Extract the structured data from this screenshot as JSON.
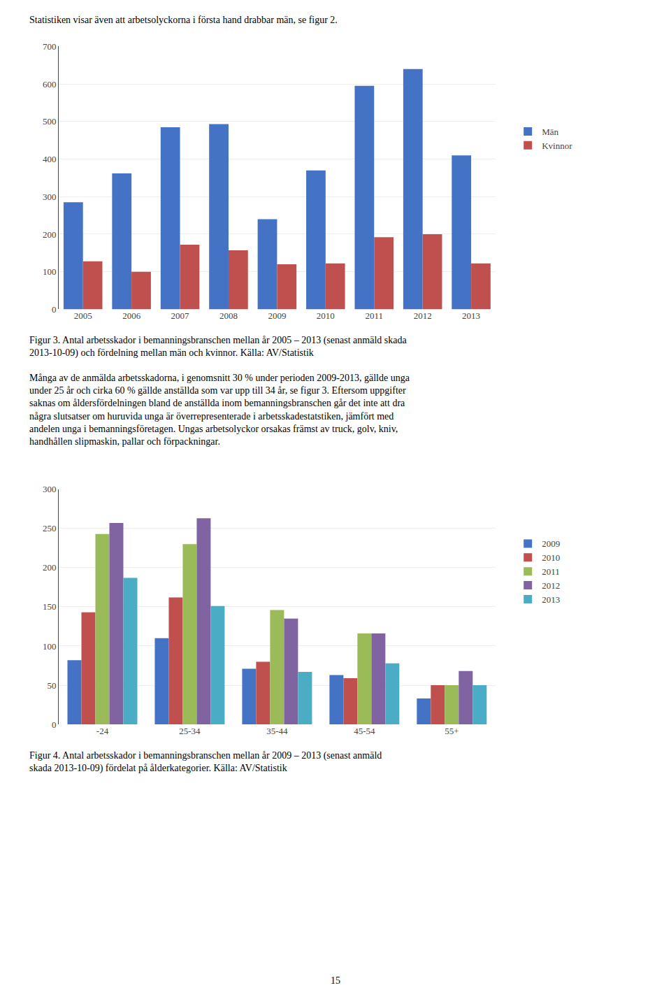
{
  "chart_data": [
    {
      "type": "bar",
      "categories": [
        "2005",
        "2006",
        "2007",
        "2008",
        "2009",
        "2010",
        "2011",
        "2012",
        "2013"
      ],
      "series": [
        {
          "name": "Män",
          "color": "#4472C4",
          "values": [
            285,
            362,
            485,
            493,
            240,
            370,
            595,
            640,
            410
          ]
        },
        {
          "name": "Kvinnor",
          "color": "#C0504D",
          "values": [
            128,
            100,
            172,
            157,
            120,
            122,
            192,
            200,
            122
          ]
        }
      ],
      "ylim": [
        0,
        700
      ],
      "yticks": [
        0,
        100,
        200,
        300,
        400,
        500,
        600,
        700
      ],
      "grid": true,
      "legend": "right",
      "annotations": [
        [
          "Statistiken visar även att arbetsolyckorna i första hand drabbar män, se figur 2."
        ],
        [
          "Figur 3. Antal arbetsskador i bemanningsbranschen mellan år 2005 – 2013 (senast anmäld skada",
          "2013-10-09) och fördelning mellan män och kvinnor. Källa: AV/Statistik"
        ]
      ]
    },
    {
      "type": "bar",
      "categories": [
        "-24",
        "25-34",
        "35-44",
        "45-54",
        "55+"
      ],
      "series": [
        {
          "name": "2009",
          "color": "#4472C4",
          "values": [
            82,
            110,
            71,
            63,
            33
          ]
        },
        {
          "name": "2010",
          "color": "#C0504D",
          "values": [
            143,
            162,
            80,
            59,
            50
          ]
        },
        {
          "name": "2011",
          "color": "#9BBB59",
          "values": [
            243,
            230,
            146,
            116,
            50
          ]
        },
        {
          "name": "2012",
          "color": "#8064A2",
          "values": [
            257,
            263,
            135,
            116,
            68
          ]
        },
        {
          "name": "2013",
          "color": "#4BACC6",
          "values": [
            187,
            151,
            67,
            78,
            50
          ]
        }
      ],
      "ylim": [
        0,
        300
      ],
      "yticks": [
        0,
        50,
        100,
        150,
        200,
        250,
        300
      ],
      "grid": true,
      "legend": "right",
      "annotations": [
        [
          "Många av de anmälda arbetsskadorna, i genomsnitt 30 % under perioden 2009-2013, gällde unga",
          "under 25 år och cirka 60 % gällde anställda som var upp till 34 år, se figur 3. Eftersom uppgifter",
          "saknas om åldersfördelningen bland de anställda inom bemanningsbranschen går det inte att dra",
          "några slutsatser om huruvida unga är överrepresenterade i arbetsskadestatstiken, jämfört med",
          "andelen unga i bemanningsföretagen. Ungas arbetsolyckor orsakas främst av truck, golv, kniv,",
          "handhållen slipmaskin, pallar och förpackningar."
        ],
        [
          "Figur 4. Antal arbetsskador i bemanningsbranschen mellan år 2009 – 2013 (senast anmäld",
          "skada 2013-10-09) fördelat på ålderkategorier. Källa: AV/Statistik"
        ],
        [
          "15"
        ]
      ]
    }
  ]
}
